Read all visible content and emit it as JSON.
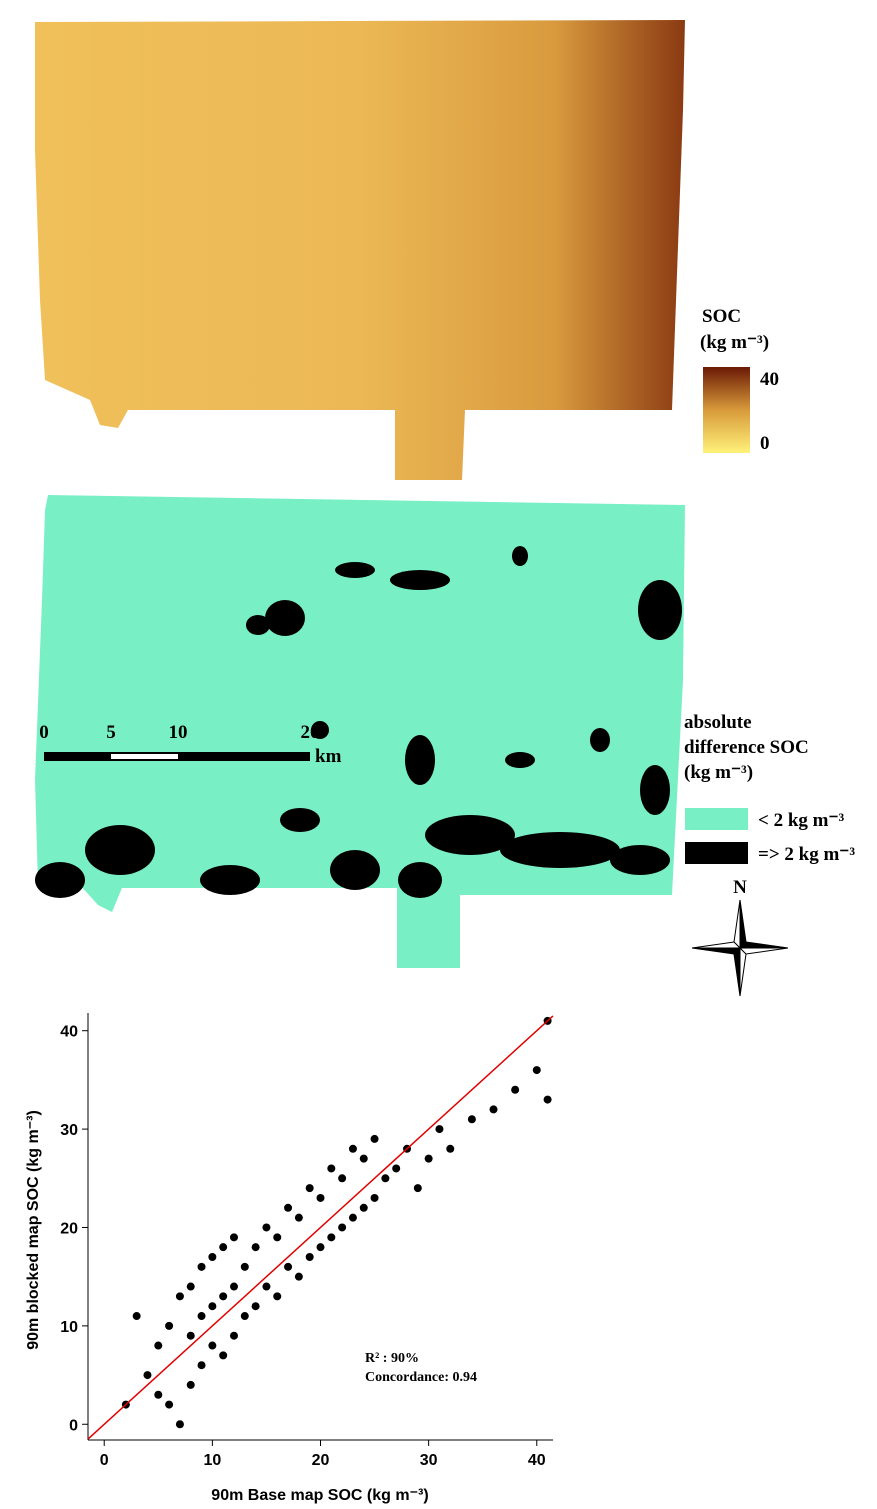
{
  "maps": {
    "soc_legend": {
      "title": "SOC",
      "unit": "(kg m⁻³)",
      "max_label": "40",
      "min_label": "0"
    },
    "difference_legend": {
      "title_lines": [
        "absolute",
        "difference SOC",
        "(kg m⁻³)"
      ],
      "items": [
        "< 2 kg m⁻³",
        "=> 2 kg m⁻³"
      ]
    },
    "scale_bar": {
      "labels": [
        "0",
        "5",
        "10",
        "20"
      ],
      "unit": "km"
    },
    "north": "N"
  },
  "chart_data": {
    "type": "scatter",
    "x_label": "90m Base map SOC (kg m⁻³)",
    "y_label": "90m blocked map SOC (kg m⁻³)",
    "annotations": [
      "R² : 90%",
      "Concordance: 0.94"
    ],
    "color": "#000000",
    "x": [
      2,
      3,
      4,
      5,
      5,
      6,
      6,
      7,
      7,
      8,
      8,
      8,
      9,
      9,
      9,
      10,
      10,
      10,
      11,
      11,
      11,
      12,
      12,
      12,
      13,
      13,
      14,
      14,
      15,
      15,
      16,
      16,
      17,
      17,
      18,
      18,
      19,
      19,
      20,
      20,
      21,
      21,
      22,
      22,
      23,
      23,
      24,
      24,
      25,
      25,
      26,
      27,
      28,
      29,
      30,
      31,
      32,
      34,
      36,
      38,
      40,
      41,
      41
    ],
    "y": [
      2,
      11,
      5,
      3,
      8,
      2,
      10,
      0,
      13,
      4,
      9,
      14,
      6,
      11,
      16,
      8,
      12,
      17,
      7,
      13,
      18,
      9,
      14,
      19,
      11,
      16,
      12,
      18,
      14,
      20,
      13,
      19,
      16,
      22,
      15,
      21,
      17,
      24,
      18,
      23,
      19,
      26,
      20,
      25,
      21,
      28,
      22,
      27,
      23,
      29,
      25,
      26,
      28,
      24,
      27,
      30,
      28,
      31,
      32,
      34,
      36,
      33,
      41
    ],
    "fit_line": {
      "color": "#e00000",
      "x": [
        -1.5,
        41.5
      ],
      "y": [
        -1.5,
        41.5
      ]
    },
    "xlim": [
      -1.5,
      41.5
    ],
    "ylim": [
      -1.6,
      41.8
    ],
    "xticks": [
      0,
      10,
      20,
      30,
      40
    ],
    "yticks": [
      0,
      10,
      20,
      30,
      40
    ]
  }
}
